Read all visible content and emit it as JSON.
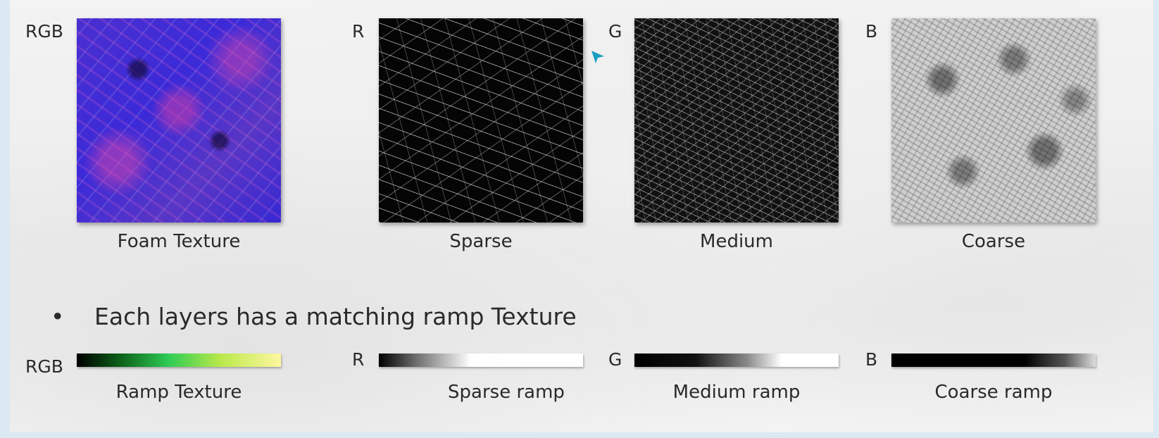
{
  "textures": [
    {
      "channel": "RGB",
      "caption": "Foam Texture"
    },
    {
      "channel": "R",
      "caption": "Sparse"
    },
    {
      "channel": "G",
      "caption": "Medium"
    },
    {
      "channel": "B",
      "caption": "Coarse"
    }
  ],
  "bullet": {
    "marker": "•",
    "text": "Each layers has a matching ramp Texture"
  },
  "ramps": [
    {
      "channel": "RGB",
      "caption": "Ramp Texture"
    },
    {
      "channel": "R",
      "caption": "Sparse ramp"
    },
    {
      "channel": "G",
      "caption": "Medium ramp"
    },
    {
      "channel": "B",
      "caption": "Coarse ramp"
    }
  ],
  "colors": {
    "rgb_texture": "#3b2ad8",
    "ramp_green": "#2ecc55",
    "ramp_yellow": "#fff7a0",
    "cursor": "#1a9fc0"
  }
}
